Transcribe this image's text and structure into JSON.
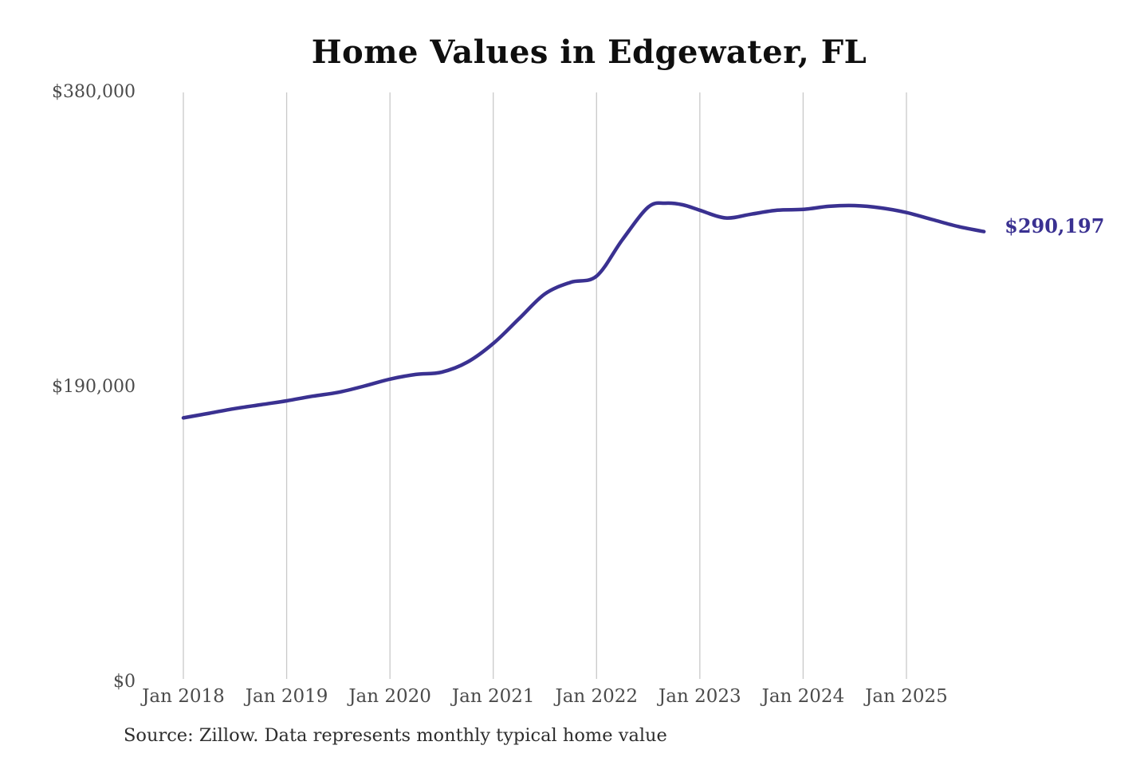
{
  "chart_data": {
    "type": "line",
    "title": "Home Values in Edgewater, FL",
    "xlabel": "",
    "ylabel": "",
    "ylim": [
      0,
      380000
    ],
    "y_ticks": [
      "$380,000",
      "$190,000",
      "$0"
    ],
    "x_ticks": [
      "Jan 2018",
      "Jan 2019",
      "Jan 2020",
      "Jan 2021",
      "Jan 2022",
      "Jan 2023",
      "Jan 2024",
      "Jan 2025"
    ],
    "grid": "vertical-only",
    "legend_position": "none",
    "line_color": "#3a3191",
    "gridline_color": "#c9c9c9",
    "end_label": "$290,197",
    "final_value": 290197,
    "source_note": "Source: Zillow. Data represents monthly typical home value",
    "series": [
      {
        "name": "Typical home value",
        "points": [
          {
            "date": "2018-01",
            "value": 170000
          },
          {
            "date": "2018-04",
            "value": 173000
          },
          {
            "date": "2018-07",
            "value": 176000
          },
          {
            "date": "2018-10",
            "value": 178500
          },
          {
            "date": "2019-01",
            "value": 181000
          },
          {
            "date": "2019-04",
            "value": 184000
          },
          {
            "date": "2019-07",
            "value": 186500
          },
          {
            "date": "2019-10",
            "value": 190500
          },
          {
            "date": "2020-01",
            "value": 195000
          },
          {
            "date": "2020-04",
            "value": 198000
          },
          {
            "date": "2020-07",
            "value": 199500
          },
          {
            "date": "2020-10",
            "value": 206000
          },
          {
            "date": "2021-01",
            "value": 218000
          },
          {
            "date": "2021-04",
            "value": 234000
          },
          {
            "date": "2021-07",
            "value": 250000
          },
          {
            "date": "2021-10",
            "value": 257500
          },
          {
            "date": "2022-01",
            "value": 261500
          },
          {
            "date": "2022-04",
            "value": 285000
          },
          {
            "date": "2022-07",
            "value": 306000
          },
          {
            "date": "2022-09",
            "value": 308500
          },
          {
            "date": "2022-11",
            "value": 307500
          },
          {
            "date": "2023-01",
            "value": 304000
          },
          {
            "date": "2023-04",
            "value": 299000
          },
          {
            "date": "2023-07",
            "value": 301500
          },
          {
            "date": "2023-10",
            "value": 304000
          },
          {
            "date": "2024-01",
            "value": 304500
          },
          {
            "date": "2024-04",
            "value": 306500
          },
          {
            "date": "2024-07",
            "value": 307000
          },
          {
            "date": "2024-10",
            "value": 305500
          },
          {
            "date": "2025-01",
            "value": 302500
          },
          {
            "date": "2025-04",
            "value": 298000
          },
          {
            "date": "2025-07",
            "value": 293500
          },
          {
            "date": "2025-10",
            "value": 290197
          }
        ]
      }
    ]
  }
}
